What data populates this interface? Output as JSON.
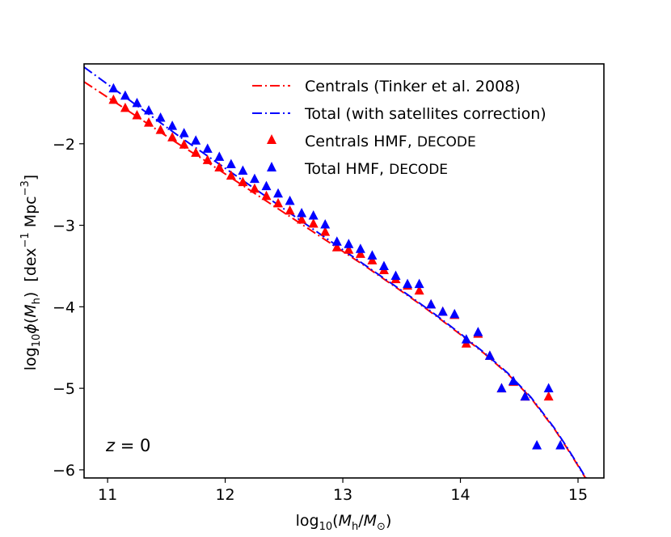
{
  "chart_data": {
    "type": "line",
    "title": "",
    "xlabel_parts": {
      "prefix": "log",
      "sub": "10",
      "open": "(",
      "m1": "M",
      "m1sub": "h",
      "slash": "/",
      "m2": "M",
      "m2sub": "⊙",
      "close": ")"
    },
    "ylabel_parts": {
      "prefix": "log",
      "sub": "10",
      "phi": "ϕ",
      "open": "(",
      "m": "M",
      "msub": "h",
      "close": ")",
      "units": "  [dex",
      "sup1": "−1",
      "mpc": " Mpc",
      "sup2": "−3",
      "end": "]"
    },
    "xlim": [
      10.8,
      15.22
    ],
    "ylim": [
      -6.1,
      -1.02
    ],
    "xticks": [
      11,
      12,
      13,
      14,
      15
    ],
    "xtick_labels": [
      "11",
      "12",
      "13",
      "14",
      "15"
    ],
    "yticks": [
      -2,
      -3,
      -4,
      -5,
      -6
    ],
    "ytick_labels": [
      "−2",
      "−3",
      "−4",
      "−5",
      "−6"
    ],
    "annotation": {
      "italic": "z",
      "rest": " = 0"
    },
    "legend_position": "top-right",
    "colors": {
      "centrals": "#ff0000",
      "total": "#0000ff"
    },
    "series": [
      {
        "name": "Centrals (Tinker et al. 2008)",
        "kind": "line",
        "style": "dashdot",
        "color": "#ff0000",
        "x": [
          10.8,
          11.0,
          11.2,
          11.4,
          11.6,
          11.8,
          12.0,
          12.2,
          12.4,
          12.6,
          12.8,
          13.0,
          13.2,
          13.4,
          13.6,
          13.8,
          14.0,
          14.2,
          14.4,
          14.6,
          14.8,
          14.9,
          15.0,
          15.05,
          15.1
        ],
        "values": [
          -1.24,
          -1.43,
          -1.62,
          -1.81,
          -2.0,
          -2.18,
          -2.37,
          -2.56,
          -2.75,
          -2.94,
          -3.13,
          -3.32,
          -3.51,
          -3.71,
          -3.91,
          -4.12,
          -4.34,
          -4.57,
          -4.82,
          -5.12,
          -5.5,
          -5.72,
          -5.95,
          -6.07,
          -6.18
        ]
      },
      {
        "name": "Total (with satellites correction)",
        "kind": "line",
        "style": "dashdot",
        "color": "#0000ff",
        "x": [
          10.8,
          11.0,
          11.2,
          11.4,
          11.6,
          11.8,
          12.0,
          12.2,
          12.4,
          12.6,
          12.8,
          13.0,
          13.2,
          13.4,
          13.6,
          13.8,
          14.0,
          14.2,
          14.4,
          14.6,
          14.8,
          14.9,
          15.0,
          15.05,
          15.1
        ],
        "values": [
          -1.06,
          -1.27,
          -1.48,
          -1.69,
          -1.9,
          -2.1,
          -2.3,
          -2.5,
          -2.7,
          -2.9,
          -3.1,
          -3.3,
          -3.5,
          -3.7,
          -3.9,
          -4.11,
          -4.33,
          -4.56,
          -4.81,
          -5.11,
          -5.49,
          -5.71,
          -5.94,
          -6.06,
          -6.17
        ]
      },
      {
        "name_main": "Centrals HMF, ",
        "name_small": "DECODE",
        "kind": "scatter",
        "marker": "triangle",
        "color": "#ff0000",
        "x": [
          11.05,
          11.15,
          11.25,
          11.35,
          11.45,
          11.55,
          11.65,
          11.75,
          11.85,
          11.95,
          12.05,
          12.15,
          12.25,
          12.35,
          12.45,
          12.55,
          12.65,
          12.75,
          12.85,
          12.95,
          13.05,
          13.15,
          13.25,
          13.35,
          13.45,
          13.55,
          13.65,
          13.75,
          13.85,
          13.95,
          14.05,
          14.15,
          14.25,
          14.35,
          14.45,
          14.55,
          14.75
        ],
        "values": [
          -1.46,
          -1.56,
          -1.65,
          -1.74,
          -1.83,
          -1.92,
          -2.01,
          -2.11,
          -2.2,
          -2.29,
          -2.39,
          -2.47,
          -2.55,
          -2.64,
          -2.73,
          -2.82,
          -2.93,
          -2.98,
          -3.08,
          -3.27,
          -3.3,
          -3.35,
          -3.43,
          -3.55,
          -3.66,
          -3.74,
          -3.8,
          -3.97,
          -4.06,
          -4.1,
          -4.45,
          -4.33,
          -4.6,
          -5.0,
          -4.92,
          -5.1,
          -5.1
        ]
      },
      {
        "name_main": "Total HMF, ",
        "name_small": "DECODE",
        "kind": "scatter",
        "marker": "triangle",
        "color": "#0000ff",
        "x": [
          11.05,
          11.15,
          11.25,
          11.35,
          11.45,
          11.55,
          11.65,
          11.75,
          11.85,
          11.95,
          12.05,
          12.15,
          12.25,
          12.35,
          12.45,
          12.55,
          12.65,
          12.75,
          12.85,
          12.95,
          13.05,
          13.15,
          13.25,
          13.35,
          13.45,
          13.55,
          13.65,
          13.75,
          13.85,
          13.95,
          14.05,
          14.15,
          14.25,
          14.35,
          14.45,
          14.55,
          14.65,
          14.75,
          14.85
        ],
        "values": [
          -1.32,
          -1.41,
          -1.5,
          -1.59,
          -1.68,
          -1.78,
          -1.87,
          -1.96,
          -2.06,
          -2.16,
          -2.25,
          -2.33,
          -2.43,
          -2.52,
          -2.61,
          -2.7,
          -2.85,
          -2.88,
          -2.99,
          -3.2,
          -3.23,
          -3.29,
          -3.37,
          -3.5,
          -3.62,
          -3.72,
          -3.72,
          -3.97,
          -4.06,
          -4.09,
          -4.4,
          -4.31,
          -4.6,
          -5.0,
          -4.91,
          -5.1,
          -5.7,
          -5.0,
          -5.7
        ]
      }
    ]
  }
}
